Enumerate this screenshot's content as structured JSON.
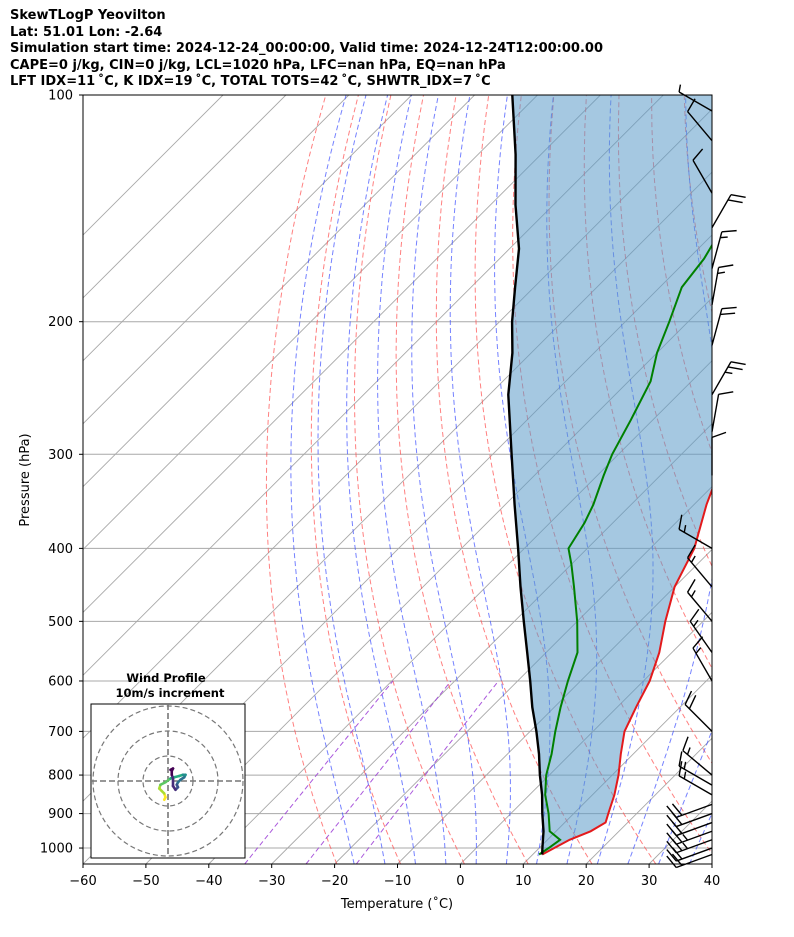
{
  "title": {
    "line1": "SkewTLogP Yeovilton",
    "line2": "Lat: 51.01   Lon: -2.64",
    "line3": "Simulation start time: 2024-12-24_00:00:00, Valid time: 2024-12-24T12:00:00.00",
    "line4": "CAPE=0 j/kg, CIN=0 j/kg, LCL=1020 hPa, LFC=nan hPa, EQ=nan hPa",
    "line5": "LFT IDX=11$^\\circ$C, K IDX=19$^\\circ$C, TOTAL TOTS=42$^\\circ$C, SHWTR_IDX=7$^\\circ$C",
    "line5_display": "LFT IDX=11 ˚C, K IDX=19 ˚C, TOTAL TOTS=42 ˚C, SHWTR_IDX=7 ˚C"
  },
  "chart_data": {
    "type": "line",
    "subtype": "skew-t log-p",
    "xlabel": "Temperature (˚C)",
    "ylabel": "Pressure (hPa)",
    "xlim": [
      -60,
      40
    ],
    "ylim": [
      1050,
      100
    ],
    "y_scale": "log",
    "x_ticks": [
      -60,
      -50,
      -40,
      -30,
      -20,
      -10,
      0,
      10,
      20,
      30,
      40
    ],
    "x_tick_labels": [
      "−60",
      "−50",
      "−40",
      "−30",
      "−20",
      "−10",
      "0",
      "10",
      "20",
      "30",
      "40"
    ],
    "y_ticks": [
      1000,
      900,
      800,
      700,
      600,
      500,
      400,
      300,
      200,
      100
    ],
    "grid": true,
    "colors": {
      "temperature": "#e31a1c",
      "dewpoint": "#008000",
      "parcel": "#000000",
      "cape_fill": "#5b9bc8",
      "dry_adiabat": "#ff5555",
      "moist_adiabat": "#3b4dff",
      "mixing_ratio": "#9b3bd6",
      "isotherm_grid": "#a8a8a8"
    },
    "series": [
      {
        "name": "temperature",
        "points": [
          [
            11.5,
            1020
          ],
          [
            13.5,
            975
          ],
          [
            15.5,
            950
          ],
          [
            16.5,
            925
          ],
          [
            15.5,
            900
          ],
          [
            13.5,
            850
          ],
          [
            11.0,
            800
          ],
          [
            8.0,
            750
          ],
          [
            5.0,
            700
          ],
          [
            3.0,
            650
          ],
          [
            1.0,
            600
          ],
          [
            -2.0,
            550
          ],
          [
            -6.0,
            500
          ],
          [
            -10.0,
            450
          ],
          [
            -13.0,
            400
          ],
          [
            -18.0,
            350
          ],
          [
            -23.0,
            300
          ],
          [
            -29.0,
            250
          ],
          [
            -34.0,
            220
          ],
          [
            -37.5,
            200
          ],
          [
            -40.0,
            180
          ],
          [
            -42.0,
            160
          ],
          [
            -44.0,
            150
          ],
          [
            -47.0,
            140
          ],
          [
            -52.0,
            130
          ],
          [
            -56.0,
            120
          ],
          [
            -60.5,
            110
          ],
          [
            -63.0,
            100
          ]
        ]
      },
      {
        "name": "dewpoint",
        "points": [
          [
            11.0,
            1020
          ],
          [
            11.5,
            1000
          ],
          [
            12.0,
            975
          ],
          [
            9.0,
            950
          ],
          [
            6.0,
            900
          ],
          [
            2.5,
            850
          ],
          [
            -0.5,
            800
          ],
          [
            -3.0,
            750
          ],
          [
            -6.0,
            700
          ],
          [
            -9.0,
            650
          ],
          [
            -12.0,
            600
          ],
          [
            -15.0,
            550
          ],
          [
            -20.0,
            500
          ],
          [
            -26.0,
            450
          ],
          [
            -30.0,
            420
          ],
          [
            -33.0,
            400
          ],
          [
            -34.5,
            370
          ],
          [
            -36.0,
            350
          ],
          [
            -39.0,
            320
          ],
          [
            -41.0,
            300
          ],
          [
            -43.5,
            270
          ],
          [
            -46.5,
            240
          ],
          [
            -50.0,
            220
          ],
          [
            -53.0,
            200
          ],
          [
            -56.5,
            180
          ],
          [
            -57.5,
            165
          ],
          [
            -59.5,
            150
          ],
          [
            -64.5,
            130
          ],
          [
            -69.5,
            120
          ],
          [
            -75.5,
            110
          ],
          [
            -78.0,
            100
          ]
        ]
      },
      {
        "name": "parcel",
        "points": [
          [
            11.5,
            1020
          ],
          [
            10.5,
            1000
          ],
          [
            8.0,
            950
          ],
          [
            5.0,
            900
          ],
          [
            2.0,
            850
          ],
          [
            -1.5,
            800
          ],
          [
            -5.0,
            750
          ],
          [
            -9.0,
            700
          ],
          [
            -13.5,
            650
          ],
          [
            -18.0,
            600
          ],
          [
            -23.0,
            550
          ],
          [
            -28.5,
            500
          ],
          [
            -34.5,
            450
          ],
          [
            -41.0,
            400
          ],
          [
            -48.5,
            350
          ],
          [
            -57.0,
            300
          ],
          [
            -67.0,
            250
          ],
          [
            -73.0,
            220
          ],
          [
            -78.0,
            200
          ],
          [
            -83.0,
            180
          ],
          [
            -88.5,
            160
          ],
          [
            -96.0,
            140
          ],
          [
            -104.0,
            120
          ],
          [
            -114.0,
            100
          ]
        ]
      }
    ],
    "wind_barbs": [
      {
        "pressure": 1020,
        "speed_kt": 20,
        "dir_deg": 250
      },
      {
        "pressure": 1000,
        "speed_kt": 20,
        "dir_deg": 250
      },
      {
        "pressure": 975,
        "speed_kt": 25,
        "dir_deg": 250
      },
      {
        "pressure": 950,
        "speed_kt": 25,
        "dir_deg": 250
      },
      {
        "pressure": 925,
        "speed_kt": 20,
        "dir_deg": 250
      },
      {
        "pressure": 900,
        "speed_kt": 20,
        "dir_deg": 250
      },
      {
        "pressure": 875,
        "speed_kt": 20,
        "dir_deg": 250
      },
      {
        "pressure": 850,
        "speed_kt": 15,
        "dir_deg": 300
      },
      {
        "pressure": 825,
        "speed_kt": 15,
        "dir_deg": 300
      },
      {
        "pressure": 800,
        "speed_kt": 15,
        "dir_deg": 310
      },
      {
        "pressure": 700,
        "speed_kt": 20,
        "dir_deg": 315
      },
      {
        "pressure": 600,
        "speed_kt": 15,
        "dir_deg": 330
      },
      {
        "pressure": 550,
        "speed_kt": 15,
        "dir_deg": 325
      },
      {
        "pressure": 500,
        "speed_kt": 15,
        "dir_deg": 320
      },
      {
        "pressure": 450,
        "speed_kt": 15,
        "dir_deg": 320
      },
      {
        "pressure": 400,
        "speed_kt": 15,
        "dir_deg": 300
      },
      {
        "pressure": 320,
        "speed_kt": 10,
        "dir_deg": 0
      },
      {
        "pressure": 280,
        "speed_kt": 10,
        "dir_deg": 10
      },
      {
        "pressure": 250,
        "speed_kt": 25,
        "dir_deg": 30
      },
      {
        "pressure": 215,
        "speed_kt": 20,
        "dir_deg": 15
      },
      {
        "pressure": 190,
        "speed_kt": 15,
        "dir_deg": 10
      },
      {
        "pressure": 170,
        "speed_kt": 15,
        "dir_deg": 15
      },
      {
        "pressure": 150,
        "speed_kt": 20,
        "dir_deg": 30
      },
      {
        "pressure": 135,
        "speed_kt": 10,
        "dir_deg": 330
      },
      {
        "pressure": 115,
        "speed_kt": 10,
        "dir_deg": 320
      },
      {
        "pressure": 105,
        "speed_kt": 5,
        "dir_deg": 300
      }
    ],
    "hodograph": {
      "title": "Wind Profile",
      "subtitle": "10m/s increment",
      "ring_increment_ms": 10,
      "rings": 3,
      "points": [
        [
          -1.5,
          -7.5
        ],
        [
          -1.0,
          -6.5
        ],
        [
          -1.5,
          -5.0
        ],
        [
          -2.5,
          -4.0
        ],
        [
          -3.5,
          -3.0
        ],
        [
          -3.0,
          -1.5
        ],
        [
          -1.0,
          -0.5
        ],
        [
          1.0,
          1.0
        ],
        [
          2.5,
          1.5
        ],
        [
          4.5,
          2.0
        ],
        [
          6.0,
          2.5
        ],
        [
          7.0,
          2.5
        ],
        [
          6.5,
          1.5
        ],
        [
          5.0,
          0.5
        ],
        [
          4.0,
          -0.5
        ],
        [
          3.5,
          -1.5
        ],
        [
          4.0,
          -2.5
        ],
        [
          3.0,
          -3.5
        ],
        [
          2.0,
          -2.0
        ],
        [
          2.0,
          1.0
        ],
        [
          1.5,
          2.5
        ],
        [
          1.5,
          4.0
        ],
        [
          2.0,
          5.0
        ],
        [
          1.0,
          4.5
        ]
      ]
    }
  }
}
